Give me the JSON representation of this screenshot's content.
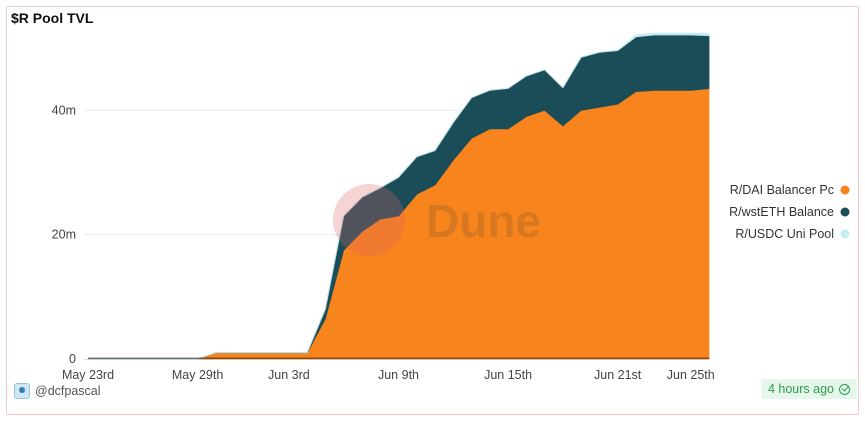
{
  "header": {
    "title": "$R Pool TVL"
  },
  "footer": {
    "author": "@dcfpascal",
    "updated": "4 hours ago"
  },
  "watermark": "Dune",
  "colors": {
    "dai": "#f7841c",
    "wsteth": "#1b4d59",
    "usdc": "#c5ecf5",
    "grid": "#ececec",
    "watermark_circle": "#e57373"
  },
  "chart_data": {
    "type": "area",
    "stacked": true,
    "title": "$R Pool TVL",
    "xlabel": "",
    "ylabel": "",
    "x_ticks": [
      "May 23rd",
      "May 29th",
      "Jun 3rd",
      "Jun 9th",
      "Jun 15th",
      "Jun 21st",
      "Jun 25th"
    ],
    "y_ticks": [
      "0",
      "20m",
      "40m"
    ],
    "ylim": [
      0,
      55
    ],
    "y_unit": "millions",
    "grid": true,
    "legend_position": "right",
    "x": [
      "May 23",
      "May 24",
      "May 25",
      "May 26",
      "May 27",
      "May 28",
      "May 29",
      "May 30",
      "May 31",
      "Jun 1",
      "Jun 2",
      "Jun 3",
      "Jun 4",
      "Jun 5",
      "Jun 6",
      "Jun 7",
      "Jun 8",
      "Jun 9",
      "Jun 10",
      "Jun 11",
      "Jun 12",
      "Jun 13",
      "Jun 14",
      "Jun 15",
      "Jun 16",
      "Jun 17",
      "Jun 18",
      "Jun 19",
      "Jun 20",
      "Jun 21",
      "Jun 22",
      "Jun 23",
      "Jun 24",
      "Jun 25",
      "Jun 26"
    ],
    "series": [
      {
        "name": "R/DAI Balancer Pc",
        "color": "#f7841c",
        "values": [
          0,
          0,
          0,
          0,
          0,
          0,
          0,
          1,
          1,
          1,
          1,
          1,
          1,
          6.5,
          17.5,
          20.5,
          22.5,
          23,
          26.5,
          28,
          32,
          35.5,
          37,
          37,
          39,
          40,
          37.5,
          40,
          40.5,
          41,
          43,
          43.2,
          43.2,
          43.2,
          43.5
        ]
      },
      {
        "name": "R/wstETH Balance",
        "color": "#1b4d59",
        "values": [
          0,
          0,
          0,
          0,
          0,
          0,
          0,
          0,
          0,
          0,
          0,
          0,
          0,
          1.5,
          5.5,
          5.5,
          5,
          6.2,
          6,
          5.5,
          6,
          6.5,
          6.2,
          6.5,
          6.5,
          6.5,
          6.1,
          8.5,
          8.8,
          8.6,
          8.8,
          8.9,
          8.9,
          8.9,
          8.5
        ]
      },
      {
        "name": "R/USDC Uni Pool",
        "color": "#c5ecf5",
        "values": [
          0,
          0,
          0,
          0,
          0,
          0,
          0,
          0,
          0,
          0,
          0,
          0,
          0,
          0,
          0,
          0,
          0,
          0,
          0,
          0,
          0,
          0,
          0,
          0,
          0,
          0,
          0,
          0,
          0,
          0,
          0.3,
          0.3,
          0.3,
          0.3,
          0.3
        ]
      }
    ]
  }
}
